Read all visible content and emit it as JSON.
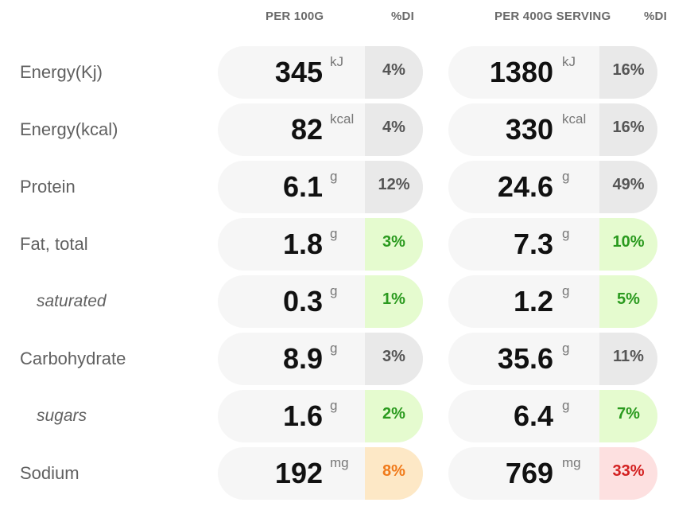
{
  "headers": {
    "per100": "PER 100G",
    "di1": "%DI",
    "perServing": "PER 400G SERVING",
    "di2": "%DI"
  },
  "colors": {
    "neutral": "#555555",
    "green": "#2a9a1e",
    "orange": "#f07a1a",
    "red": "#d32020"
  },
  "rows": [
    {
      "label": "Energy(Kj)",
      "v1": "345",
      "u1": "kJ",
      "d1": "4%",
      "v2": "1380",
      "u2": "kJ",
      "d2": "16%"
    },
    {
      "label": "Energy(kcal)",
      "v1": "82",
      "u1": "kcal",
      "d1": "4%",
      "v2": "330",
      "u2": "kcal",
      "d2": "16%"
    },
    {
      "label": "Protein",
      "v1": "6.1",
      "u1": "g",
      "d1": "12%",
      "v2": "24.6",
      "u2": "g",
      "d2": "49%"
    },
    {
      "label": "Fat, total",
      "v1": "1.8",
      "u1": "g",
      "d1": "3%",
      "v2": "7.3",
      "u2": "g",
      "d2": "10%"
    },
    {
      "label": "saturated",
      "v1": "0.3",
      "u1": "g",
      "d1": "1%",
      "v2": "1.2",
      "u2": "g",
      "d2": "5%"
    },
    {
      "label": "Carbohydrate",
      "v1": "8.9",
      "u1": "g",
      "d1": "3%",
      "v2": "35.6",
      "u2": "g",
      "d2": "11%"
    },
    {
      "label": "sugars",
      "v1": "1.6",
      "u1": "g",
      "d1": "2%",
      "v2": "6.4",
      "u2": "g",
      "d2": "7%"
    },
    {
      "label": "Sodium",
      "v1": "192",
      "u1": "mg",
      "d1": "8%",
      "v2": "769",
      "u2": "mg",
      "d2": "33%"
    }
  ]
}
